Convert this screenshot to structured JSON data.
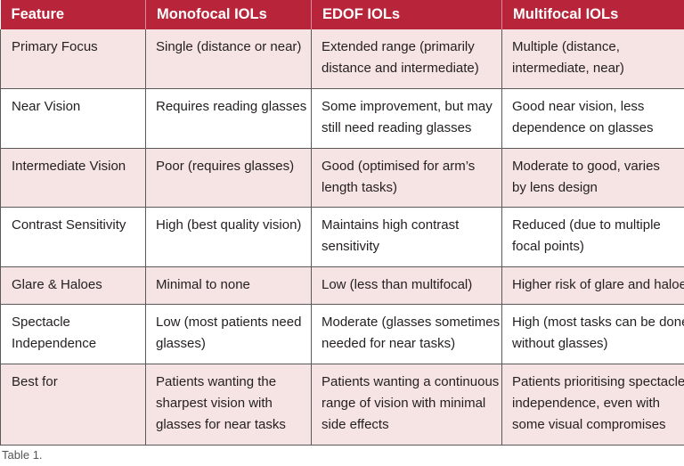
{
  "table": {
    "headers": [
      "Feature",
      "Monofocal IOLs",
      "EDOF IOLs",
      "Multifocal IOLs"
    ],
    "rows": [
      [
        "Primary Focus",
        "Single (distance or near)",
        "Extended range (primarily\ndistance and intermediate)",
        "Multiple (distance,\nintermediate, near)"
      ],
      [
        "Near Vision",
        "Requires reading glasses",
        "Some improvement, but may\nstill need reading glasses",
        "Good near vision, less\ndependence on glasses"
      ],
      [
        "Intermediate Vision",
        "Poor (requires glasses)",
        "Good (optimised for arm’s\nlength tasks)",
        "Moderate to good, varies\nby lens design"
      ],
      [
        "Contrast Sensitivity",
        "High (best quality vision)",
        "Maintains high contrast\nsensitivity",
        "Reduced (due to multiple\nfocal points)"
      ],
      [
        "Glare & Haloes",
        "Minimal to none",
        "Low (less than multifocal)",
        "Higher risk of glare and haloes"
      ],
      [
        "Spectacle\nIndependence",
        "Low (most patients need\nglasses)",
        "Moderate (glasses sometimes\nneeded for near tasks)",
        "High (most tasks can be done\nwithout glasses)"
      ],
      [
        "Best for",
        "Patients wanting the\nsharpest vision with\nglasses for near tasks",
        "Patients wanting a continuous\nrange of vision with minimal\nside effects",
        "Patients prioritising spectacle\nindependence, even with\nsome visual compromises"
      ]
    ]
  },
  "caption": "Table 1.",
  "colors": {
    "header_bg": "#b8253a",
    "header_text": "#ffffff",
    "stripe_bg": "#f6e4e4",
    "border": "#5a5a5a"
  }
}
